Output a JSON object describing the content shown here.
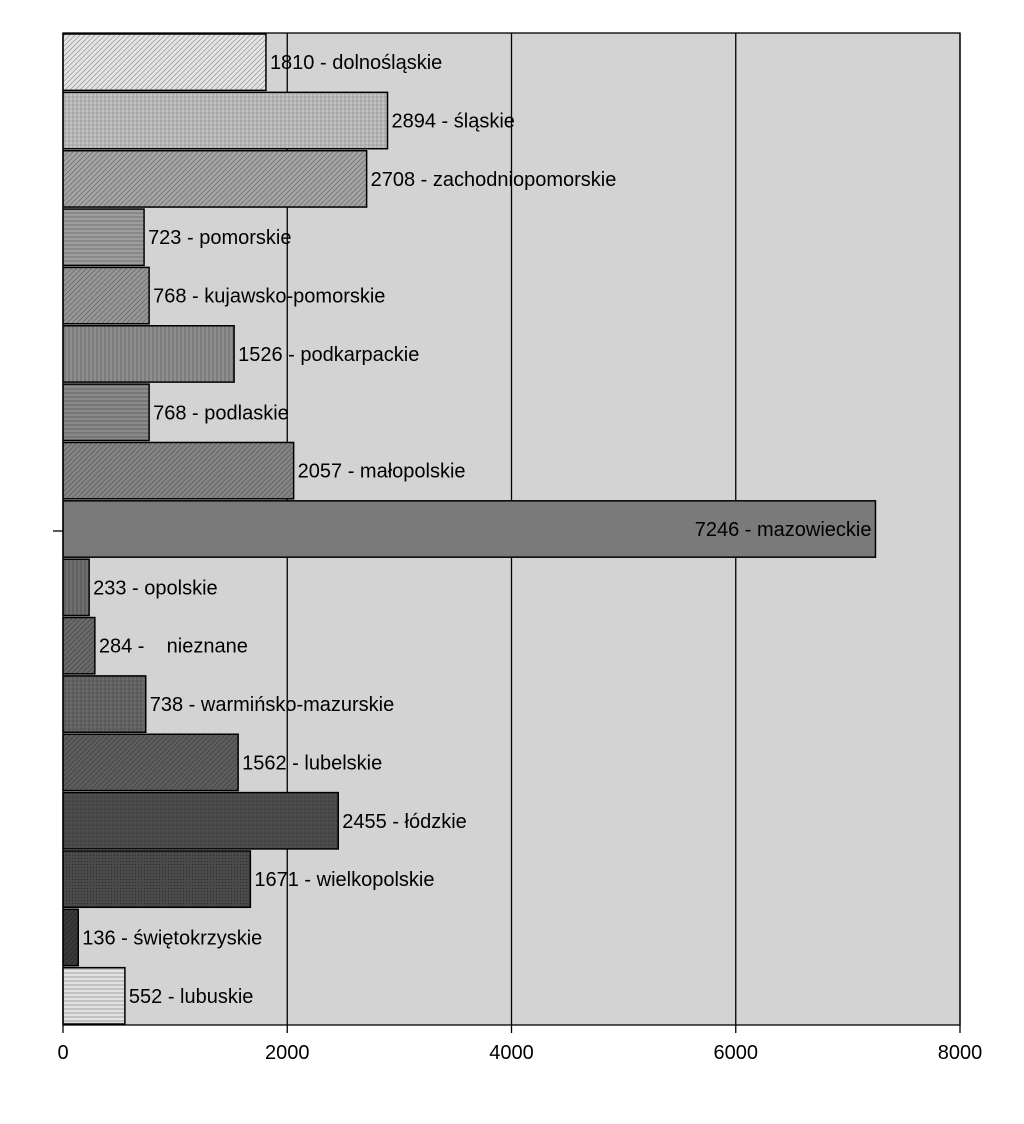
{
  "chart_data": {
    "type": "bar",
    "orientation": "horizontal",
    "title": "",
    "xlabel": "",
    "ylabel": "",
    "xlim": [
      0,
      8000
    ],
    "x_ticks": [
      0,
      2000,
      4000,
      6000,
      8000
    ],
    "grid": "vertical",
    "legend": "none",
    "plot_background": "#d3d3d3",
    "bars": [
      {
        "label": "1810 - dolnośląskie",
        "value": 1810,
        "fill": "#e4e4e4",
        "pattern": "diag"
      },
      {
        "label": "2894 - śląskie",
        "value": 2894,
        "fill": "#c4c4c4",
        "pattern": "cross"
      },
      {
        "label": "2708 - zachodniopomorskie",
        "value": 2708,
        "fill": "#a4a4a4",
        "pattern": "diag"
      },
      {
        "label": "723 - pomorskie",
        "value": 723,
        "fill": "#9e9e9e",
        "pattern": "hstripe"
      },
      {
        "label": "768 - kujawsko-pomorskie",
        "value": 768,
        "fill": "#979797",
        "pattern": "diag"
      },
      {
        "label": "1526 - podkarpackie",
        "value": 1526,
        "fill": "#8e8e8e",
        "pattern": "vstripe"
      },
      {
        "label": "768 - podlaskie",
        "value": 768,
        "fill": "#8a8a8a",
        "pattern": "hstripe"
      },
      {
        "label": "2057 - małopolskie",
        "value": 2057,
        "fill": "#858585",
        "pattern": "diag"
      },
      {
        "label": "7246 - mazowieckie",
        "value": 7246,
        "fill": "#7a7a7a",
        "pattern": "none",
        "label_inside": true
      },
      {
        "label": "233 - opolskie",
        "value": 233,
        "fill": "#6e6e6e",
        "pattern": "vstripe"
      },
      {
        "label": "284 -    nieznane",
        "value": 284,
        "fill": "#6a6a6a",
        "pattern": "diag"
      },
      {
        "label": "738 - warmińsko-mazurskie",
        "value": 738,
        "fill": "#6a6a6a",
        "pattern": "cross"
      },
      {
        "label": "1562 - lubelskie",
        "value": 1562,
        "fill": "#5e5e5e",
        "pattern": "diag"
      },
      {
        "label": "2455 - łódzkie",
        "value": 2455,
        "fill": "#4e4e4e",
        "pattern": "cross"
      },
      {
        "label": "1671 - wielkopolskie",
        "value": 1671,
        "fill": "#4a4a4a",
        "pattern": "dots"
      },
      {
        "label": "136 - świętokrzyskie",
        "value": 136,
        "fill": "#3a3a3a",
        "pattern": "diag"
      },
      {
        "label": "552 - lubuskie",
        "value": 552,
        "fill": "#e2e2e2",
        "pattern": "hstripe"
      }
    ]
  }
}
